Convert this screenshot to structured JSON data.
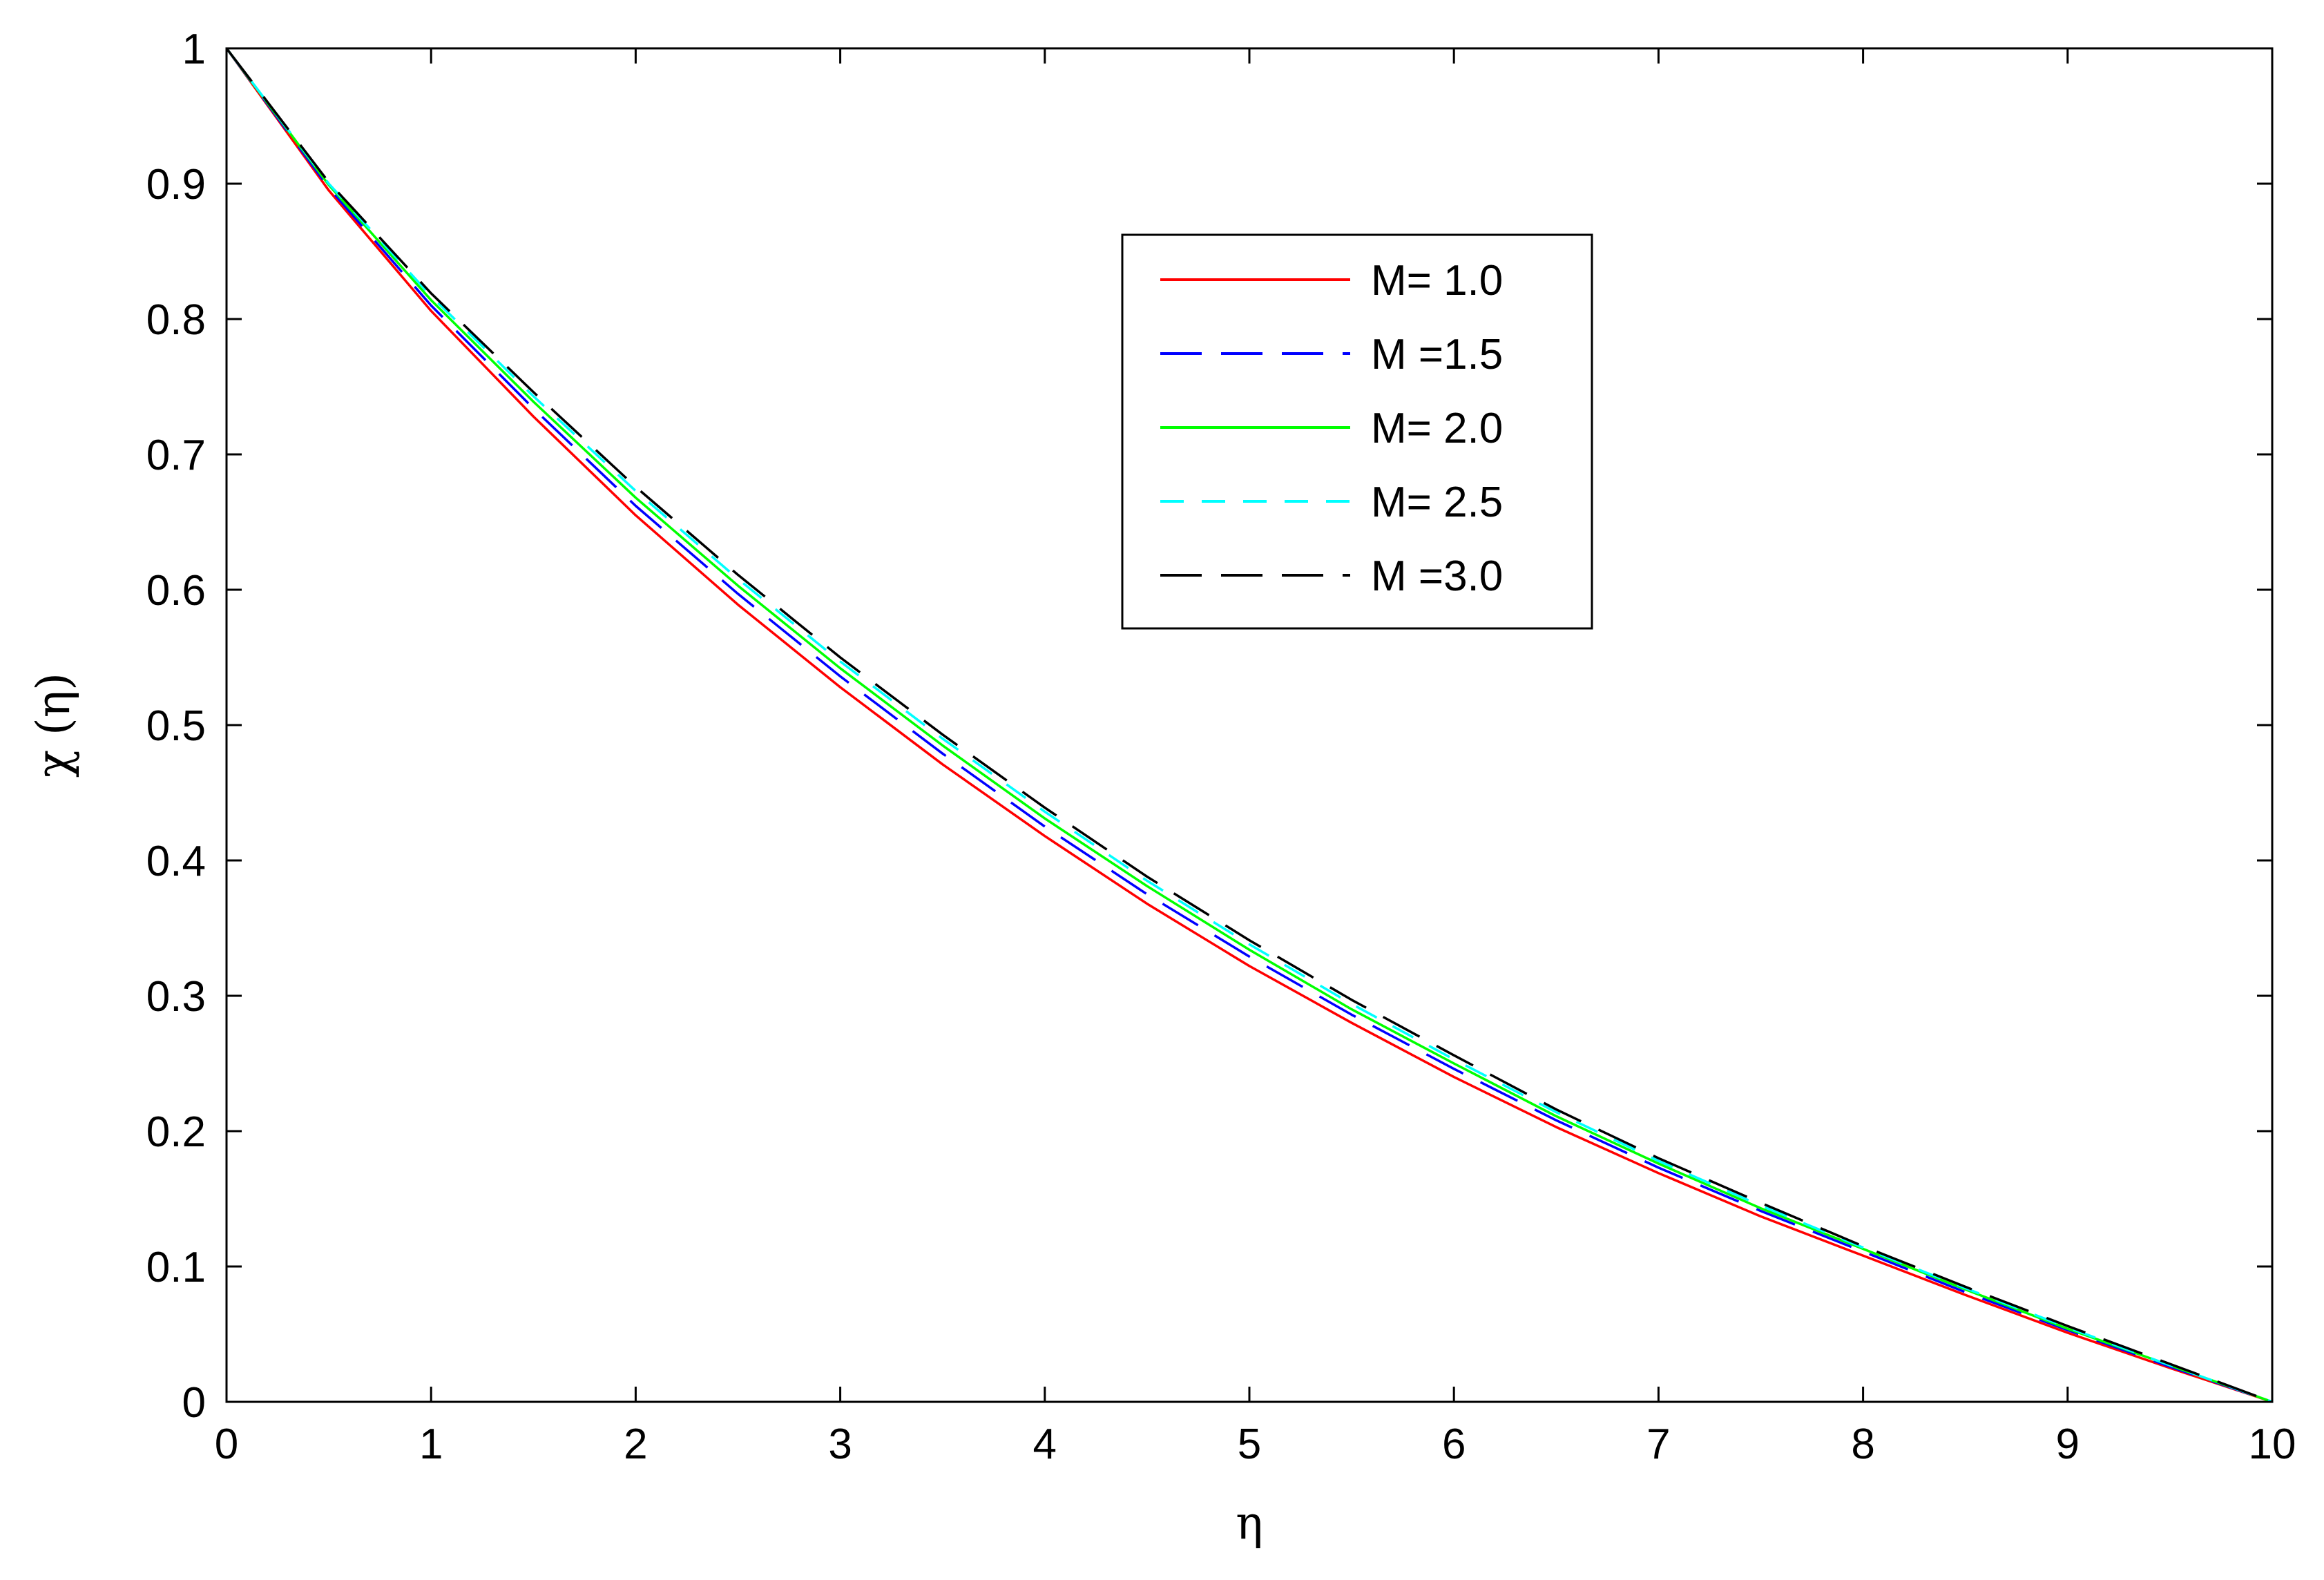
{
  "chart_data": {
    "type": "line",
    "xlabel": "η",
    "ylabel": "χ (η)",
    "xlim": [
      0,
      10
    ],
    "ylim": [
      0,
      1
    ],
    "xticks": [
      "0",
      "1",
      "2",
      "3",
      "4",
      "5",
      "6",
      "7",
      "8",
      "9",
      "10"
    ],
    "yticks": [
      "0",
      "0.1",
      "0.2",
      "0.3",
      "0.4",
      "0.5",
      "0.6",
      "0.7",
      "0.8",
      "0.9",
      "1"
    ],
    "grid": false,
    "legend_position": "upper-center",
    "x": [
      0,
      0.5,
      1,
      1.5,
      2,
      2.5,
      3,
      3.5,
      4,
      4.5,
      5,
      5.5,
      6,
      6.5,
      7,
      7.5,
      8,
      8.5,
      9,
      9.5,
      10
    ],
    "series": [
      {
        "name": "M= 1.0",
        "color": "#ff0000",
        "dash": "solid",
        "values": [
          1.0,
          0.895,
          0.806,
          0.728,
          0.655,
          0.589,
          0.528,
          0.471,
          0.418,
          0.368,
          0.322,
          0.28,
          0.24,
          0.203,
          0.169,
          0.137,
          0.108,
          0.079,
          0.051,
          0.025,
          0.0
        ]
      },
      {
        "name": "M =1.5",
        "color": "#0000ff",
        "dash": "long",
        "values": [
          1.0,
          0.897,
          0.81,
          0.734,
          0.662,
          0.597,
          0.536,
          0.479,
          0.425,
          0.375,
          0.329,
          0.286,
          0.246,
          0.208,
          0.173,
          0.141,
          0.111,
          0.081,
          0.053,
          0.026,
          0.0
        ]
      },
      {
        "name": "M= 2.0",
        "color": "#00ff00",
        "dash": "solid",
        "values": [
          1.0,
          0.899,
          0.814,
          0.739,
          0.668,
          0.603,
          0.542,
          0.485,
          0.431,
          0.381,
          0.334,
          0.29,
          0.25,
          0.211,
          0.176,
          0.143,
          0.113,
          0.083,
          0.054,
          0.027,
          0.0
        ]
      },
      {
        "name": "M= 2.5",
        "color": "#00ffff",
        "dash": "short",
        "values": [
          1.0,
          0.9,
          0.817,
          0.743,
          0.673,
          0.608,
          0.547,
          0.49,
          0.436,
          0.385,
          0.338,
          0.294,
          0.253,
          0.214,
          0.178,
          0.145,
          0.114,
          0.084,
          0.055,
          0.027,
          0.0
        ]
      },
      {
        "name": "M =3.0",
        "color": "#000000",
        "dash": "long",
        "values": [
          1.0,
          0.901,
          0.819,
          0.746,
          0.676,
          0.611,
          0.55,
          0.493,
          0.439,
          0.388,
          0.341,
          0.297,
          0.256,
          0.216,
          0.18,
          0.147,
          0.115,
          0.085,
          0.056,
          0.028,
          0.0
        ]
      }
    ]
  }
}
